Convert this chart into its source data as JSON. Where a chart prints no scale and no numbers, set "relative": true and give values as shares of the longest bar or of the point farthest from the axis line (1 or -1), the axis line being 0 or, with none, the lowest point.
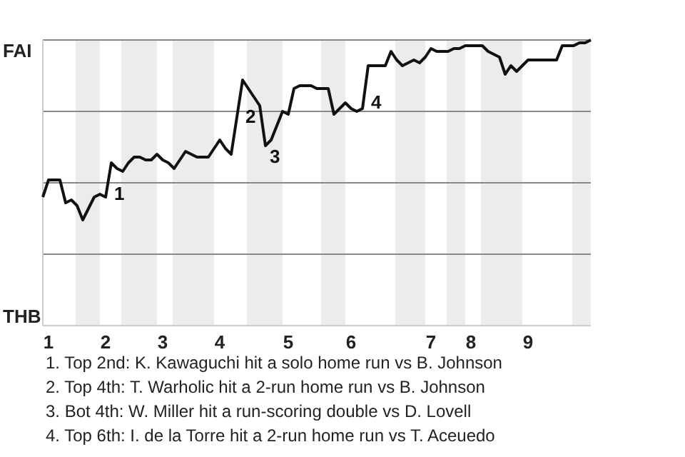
{
  "chart_data": {
    "type": "line",
    "relative": true,
    "categories": [
      null,
      "1",
      null,
      null,
      null,
      null,
      null,
      null,
      null,
      null,
      null,
      "2",
      null,
      null,
      null,
      null,
      null,
      null,
      null,
      null,
      null,
      "3",
      null,
      null,
      null,
      null,
      null,
      null,
      null,
      null,
      null,
      "4",
      null,
      null,
      null,
      null,
      null,
      null,
      null,
      null,
      null,
      null,
      null,
      "5",
      null,
      null,
      null,
      null,
      null,
      null,
      null,
      null,
      null,
      null,
      "6",
      null,
      null,
      null,
      null,
      null,
      null,
      null,
      null,
      null,
      null,
      null,
      null,
      null,
      "7",
      null,
      null,
      null,
      null,
      null,
      null,
      "8",
      null,
      null,
      null,
      null,
      null,
      null,
      null,
      null,
      null,
      "9",
      null,
      null,
      null,
      null,
      null,
      null,
      null,
      null,
      null,
      null,
      null
    ],
    "series": [
      {
        "color": "#111111",
        "values": [
          0.45,
          0.51,
          0.51,
          0.51,
          0.43,
          0.44,
          0.42,
          0.37,
          0.41,
          0.45,
          0.46,
          0.45,
          0.57,
          0.55,
          0.54,
          0.57,
          0.59,
          0.59,
          0.58,
          0.58,
          0.6,
          0.58,
          0.57,
          0.55,
          0.58,
          0.61,
          0.6,
          0.59,
          0.59,
          0.59,
          0.62,
          0.65,
          0.62,
          0.6,
          0.73,
          0.86,
          0.83,
          0.8,
          0.77,
          0.63,
          0.65,
          0.7,
          0.75,
          0.74,
          0.83,
          0.84,
          0.84,
          0.84,
          0.83,
          0.83,
          0.83,
          0.74,
          0.76,
          0.78,
          0.76,
          0.75,
          0.76,
          0.91,
          0.91,
          0.91,
          0.91,
          0.96,
          0.93,
          0.91,
          0.92,
          0.93,
          0.92,
          0.94,
          0.97,
          0.96,
          0.96,
          0.96,
          0.97,
          0.97,
          0.98,
          0.98,
          0.98,
          0.98,
          0.96,
          0.95,
          0.94,
          0.88,
          0.91,
          0.89,
          0.91,
          0.93,
          0.93,
          0.93,
          0.93,
          0.93,
          0.93,
          0.98,
          0.98,
          0.98,
          0.99,
          0.99,
          1.0
        ]
      }
    ],
    "grid": "y",
    "marker": "none",
    "line_style": "solid",
    "annotations": [
      "FAI",
      "THB",
      "1. Top 2nd: K. Kawaguchi hit a solo home run vs B. Johnson",
      "2. Top 4th: T. Warholic hit a 2-run home run vs B. Johnson",
      "3. Bot 4th: W. Miller hit a run-scoring double vs D. Lovell",
      "4. Top 6th: I. de la Torre hit a 2-run home run vs T. Aceuedo",
      {
        "text": "1",
        "x": "2",
        "y": 0.45
      },
      {
        "text": "2",
        "y": 0.86
      },
      {
        "text": "3",
        "y": 0.63
      },
      {
        "text": "4",
        "y": 0.91
      }
    ]
  }
}
